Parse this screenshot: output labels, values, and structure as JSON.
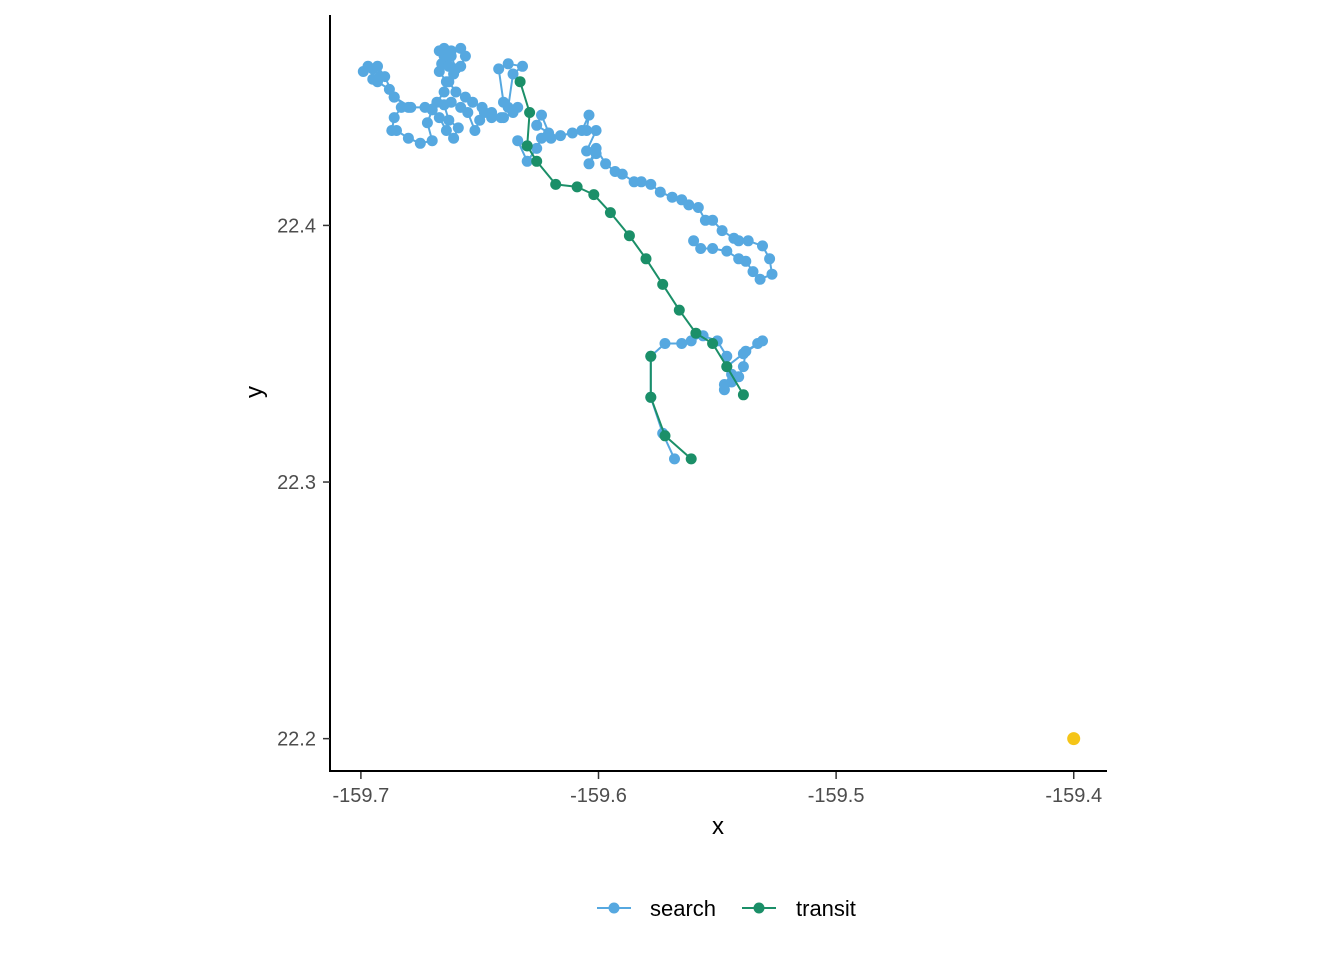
{
  "chart_data": {
    "type": "scatter",
    "title": "",
    "xlabel": "x",
    "ylabel": "y",
    "xlim": [
      -159.713,
      -159.386
    ],
    "ylim": [
      22.187,
      22.482
    ],
    "xticks": [
      -159.7,
      -159.6,
      -159.5,
      -159.4
    ],
    "xtick_labels": [
      "-159.7",
      "-159.6",
      "-159.5",
      "-159.4"
    ],
    "yticks": [
      22.2,
      22.3,
      22.4
    ],
    "ytick_labels": [
      "22.2",
      "22.3",
      "22.4"
    ],
    "grid": false,
    "legend_position": "bottom",
    "series": [
      {
        "name": "search",
        "color": "#56A8E0",
        "mode": "lines+markers",
        "points": [
          [
            -159.568,
            22.309
          ],
          [
            -159.573,
            22.319
          ],
          [
            -159.578,
            22.333
          ],
          [
            -159.578,
            22.349
          ],
          [
            -159.572,
            22.354
          ],
          [
            -159.565,
            22.354
          ],
          [
            -159.561,
            22.355
          ],
          [
            -159.556,
            22.357
          ],
          [
            -159.55,
            22.355
          ],
          [
            -159.546,
            22.349
          ],
          [
            -159.544,
            22.342
          ],
          [
            -159.547,
            22.338
          ],
          [
            -159.547,
            22.336
          ],
          [
            -159.544,
            22.339
          ],
          [
            -159.541,
            22.341
          ],
          [
            -159.539,
            22.345
          ],
          [
            -159.538,
            22.351
          ],
          [
            -159.533,
            22.354
          ],
          [
            -159.531,
            22.355
          ],
          [
            -159.539,
            22.35
          ],
          [
            -159.546,
            22.345
          ]
        ]
      },
      {
        "name": "search",
        "color": "#56A8E0",
        "mode": "lines+markers",
        "points": [
          [
            -159.634,
            22.446
          ],
          [
            -159.638,
            22.446
          ],
          [
            -159.636,
            22.459
          ],
          [
            -159.632,
            22.462
          ],
          [
            -159.638,
            22.463
          ],
          [
            -159.642,
            22.461
          ],
          [
            -159.64,
            22.448
          ],
          [
            -159.636,
            22.444
          ],
          [
            -159.64,
            22.442
          ],
          [
            -159.645,
            22.442
          ],
          [
            -159.648,
            22.444
          ],
          [
            -159.65,
            22.441
          ],
          [
            -159.652,
            22.437
          ],
          [
            -159.655,
            22.444
          ],
          [
            -159.658,
            22.446
          ],
          [
            -159.662,
            22.448
          ],
          [
            -159.665,
            22.447
          ],
          [
            -159.663,
            22.441
          ],
          [
            -159.659,
            22.438
          ],
          [
            -159.661,
            22.434
          ],
          [
            -159.664,
            22.437
          ],
          [
            -159.667,
            22.442
          ],
          [
            -159.67,
            22.445
          ],
          [
            -159.672,
            22.44
          ],
          [
            -159.67,
            22.433
          ],
          [
            -159.675,
            22.432
          ],
          [
            -159.68,
            22.434
          ],
          [
            -159.685,
            22.437
          ],
          [
            -159.687,
            22.437
          ],
          [
            -159.686,
            22.442
          ],
          [
            -159.683,
            22.446
          ],
          [
            -159.679,
            22.446
          ],
          [
            -159.686,
            22.45
          ],
          [
            -159.688,
            22.453
          ],
          [
            -159.693,
            22.456
          ],
          [
            -159.695,
            22.457
          ],
          [
            -159.692,
            22.458
          ],
          [
            -159.695,
            22.461
          ],
          [
            -159.699,
            22.46
          ],
          [
            -159.697,
            22.462
          ],
          [
            -159.693,
            22.462
          ],
          [
            -159.69,
            22.458
          ],
          [
            -159.686,
            22.45
          ],
          [
            -159.68,
            22.446
          ],
          [
            -159.673,
            22.446
          ],
          [
            -159.668,
            22.448
          ],
          [
            -159.665,
            22.452
          ],
          [
            -159.664,
            22.456
          ],
          [
            -159.667,
            22.46
          ],
          [
            -159.666,
            22.463
          ],
          [
            -159.664,
            22.465
          ],
          [
            -159.662,
            22.468
          ],
          [
            -159.658,
            22.469
          ],
          [
            -159.656,
            22.466
          ],
          [
            -159.658,
            22.462
          ],
          [
            -159.661,
            22.459
          ],
          [
            -159.663,
            22.462
          ],
          [
            -159.665,
            22.466
          ],
          [
            -159.667,
            22.468
          ],
          [
            -159.665,
            22.469
          ],
          [
            -159.662,
            22.466
          ],
          [
            -159.66,
            22.461
          ],
          [
            -159.663,
            22.456
          ],
          [
            -159.66,
            22.452
          ],
          [
            -159.656,
            22.45
          ],
          [
            -159.653,
            22.448
          ],
          [
            -159.649,
            22.446
          ],
          [
            -159.645,
            22.444
          ],
          [
            -159.641,
            22.442
          ]
        ]
      },
      {
        "name": "search",
        "color": "#56A8E0",
        "mode": "lines+markers",
        "points": [
          [
            -159.63,
            22.431
          ],
          [
            -159.634,
            22.433
          ],
          [
            -159.63,
            22.425
          ],
          [
            -159.626,
            22.43
          ],
          [
            -159.624,
            22.434
          ],
          [
            -159.621,
            22.436
          ],
          [
            -159.626,
            22.439
          ],
          [
            -159.624,
            22.443
          ],
          [
            -159.62,
            22.434
          ],
          [
            -159.616,
            22.435
          ],
          [
            -159.611,
            22.436
          ],
          [
            -159.607,
            22.437
          ],
          [
            -159.604,
            22.443
          ],
          [
            -159.605,
            22.437
          ],
          [
            -159.601,
            22.437
          ],
          [
            -159.605,
            22.429
          ],
          [
            -159.601,
            22.428
          ],
          [
            -159.604,
            22.424
          ],
          [
            -159.601,
            22.43
          ],
          [
            -159.597,
            22.424
          ],
          [
            -159.593,
            22.421
          ],
          [
            -159.59,
            22.42
          ],
          [
            -159.585,
            22.417
          ],
          [
            -159.582,
            22.417
          ],
          [
            -159.578,
            22.416
          ],
          [
            -159.574,
            22.413
          ],
          [
            -159.569,
            22.411
          ],
          [
            -159.565,
            22.41
          ],
          [
            -159.562,
            22.408
          ],
          [
            -159.558,
            22.407
          ],
          [
            -159.555,
            22.402
          ],
          [
            -159.552,
            22.402
          ],
          [
            -159.548,
            22.398
          ],
          [
            -159.543,
            22.395
          ],
          [
            -159.541,
            22.394
          ],
          [
            -159.537,
            22.394
          ],
          [
            -159.531,
            22.392
          ],
          [
            -159.528,
            22.387
          ],
          [
            -159.527,
            22.381
          ],
          [
            -159.532,
            22.379
          ],
          [
            -159.535,
            22.382
          ],
          [
            -159.538,
            22.386
          ],
          [
            -159.541,
            22.387
          ],
          [
            -159.546,
            22.39
          ],
          [
            -159.552,
            22.391
          ],
          [
            -159.557,
            22.391
          ],
          [
            -159.56,
            22.394
          ]
        ]
      },
      {
        "name": "transit",
        "color": "#1B8F68",
        "mode": "lines+markers",
        "points": [
          [
            -159.633,
            22.456
          ],
          [
            -159.629,
            22.444
          ],
          [
            -159.63,
            22.431
          ],
          [
            -159.626,
            22.425
          ],
          [
            -159.618,
            22.416
          ],
          [
            -159.609,
            22.415
          ],
          [
            -159.602,
            22.412
          ],
          [
            -159.595,
            22.405
          ],
          [
            -159.587,
            22.396
          ],
          [
            -159.58,
            22.387
          ],
          [
            -159.573,
            22.377
          ],
          [
            -159.566,
            22.367
          ],
          [
            -159.559,
            22.358
          ],
          [
            -159.552,
            22.354
          ],
          [
            -159.546,
            22.345
          ],
          [
            -159.539,
            22.334
          ]
        ]
      },
      {
        "name": "transit",
        "color": "#1B8F68",
        "mode": "lines+markers",
        "points": [
          [
            -159.561,
            22.309
          ],
          [
            -159.572,
            22.318
          ],
          [
            -159.578,
            22.333
          ],
          [
            -159.578,
            22.349
          ]
        ]
      }
    ],
    "extra_points": [
      {
        "x": -159.4,
        "y": 22.2,
        "color": "#F5C518"
      }
    ]
  },
  "legend": {
    "items": [
      {
        "label": "search",
        "color": "#56A8E0"
      },
      {
        "label": "transit",
        "color": "#1B8F68"
      }
    ]
  }
}
